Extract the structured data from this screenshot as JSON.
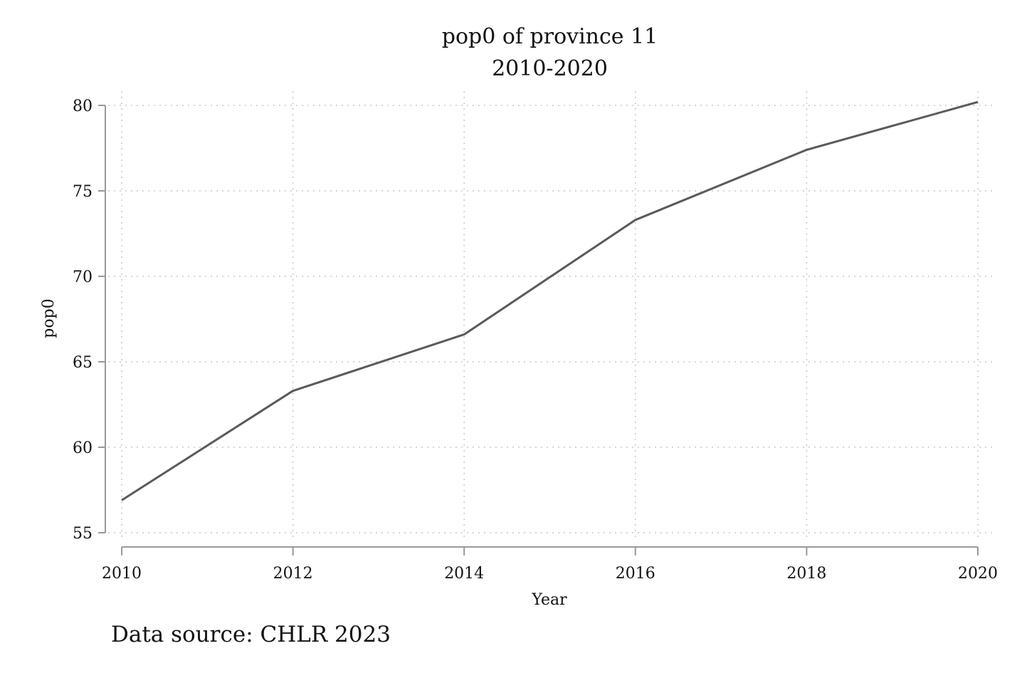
{
  "chart_data": {
    "type": "line",
    "title": "pop0 of province 11",
    "subtitle": "2010-2020",
    "xlabel": "Year",
    "ylabel": "pop0",
    "note": "Data source: CHLR 2023",
    "x": [
      2010,
      2012,
      2014,
      2016,
      2018,
      2020
    ],
    "series": [
      {
        "values": [
          56.9,
          63.3,
          66.6,
          73.3,
          77.4,
          80.2
        ]
      }
    ],
    "xticks": [
      "2010",
      "2012",
      "2014",
      "2016",
      "2018",
      "2020"
    ],
    "yticks": [
      "55",
      "60",
      "65",
      "70",
      "75",
      "80"
    ],
    "xlim": [
      2010,
      2020
    ],
    "ylim": [
      55,
      80
    ],
    "grid": true,
    "line_color": "#5a5a5a",
    "grid_color": "#c8c8c8",
    "axis_color": "#999999"
  }
}
